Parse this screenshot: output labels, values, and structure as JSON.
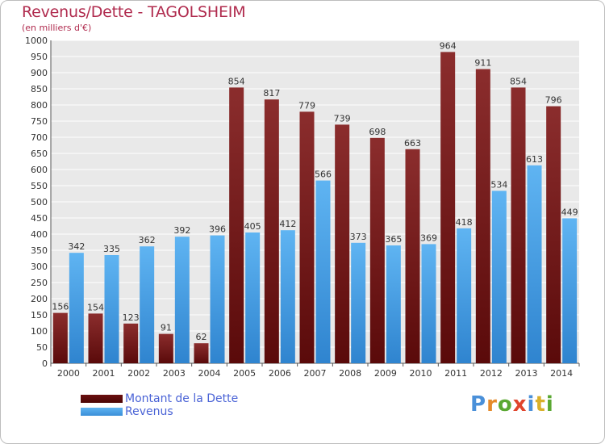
{
  "title": "Revenus/Dette - TAGOLSHEIM",
  "subtitle": "(en milliers d'€)",
  "logo": "Proxiti",
  "colors": {
    "dette": "#7a1a1a",
    "revenus": "#4aa3e8",
    "title": "#b02b4e",
    "legend_text": "#4a63d6",
    "plot_bg": "#e9e9e9"
  },
  "chart_data": {
    "type": "bar",
    "title": "Revenus/Dette - TAGOLSHEIM",
    "subtitle": "(en milliers d'€)",
    "categories": [
      "2000",
      "2001",
      "2002",
      "2003",
      "2004",
      "2005",
      "2006",
      "2007",
      "2008",
      "2009",
      "2010",
      "2011",
      "2012",
      "2013",
      "2014"
    ],
    "series": [
      {
        "name": "Montant de la Dette",
        "color": "#7a1a1a",
        "values": [
          156,
          154,
          123,
          91,
          62,
          854,
          817,
          779,
          739,
          698,
          663,
          964,
          911,
          854,
          796
        ]
      },
      {
        "name": "Revenus",
        "color": "#4aa3e8",
        "values": [
          342,
          335,
          362,
          392,
          396,
          405,
          412,
          566,
          373,
          365,
          369,
          418,
          534,
          613,
          449
        ]
      }
    ],
    "yticks": [
      0,
      50,
      100,
      150,
      200,
      250,
      300,
      350,
      400,
      450,
      500,
      550,
      600,
      650,
      700,
      750,
      800,
      850,
      900,
      950,
      1000
    ],
    "ylim": [
      0,
      1000
    ],
    "grid": true,
    "legend": "bottom-left"
  }
}
